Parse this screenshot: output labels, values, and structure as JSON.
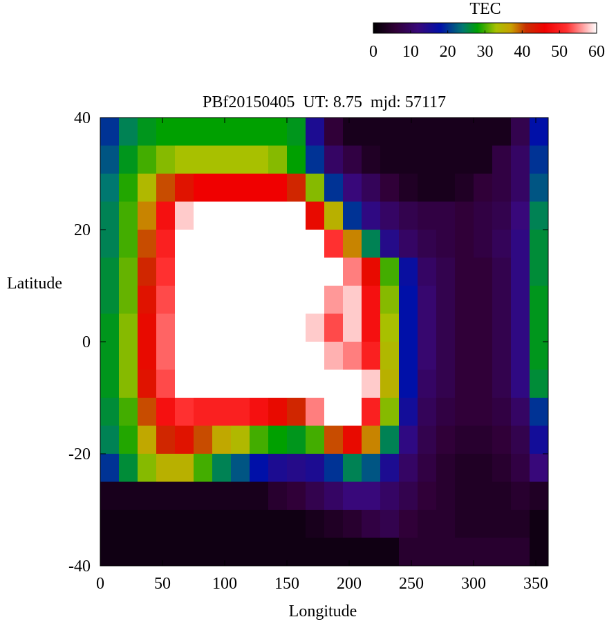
{
  "chart_data": {
    "type": "heatmap",
    "title": "PBf20150405  UT: 8.75  mjd: 57117",
    "x_label": "Longitude",
    "y_label": "Latitude",
    "colorbar_label": "TEC",
    "xlim": [
      0,
      360
    ],
    "xticks": [
      0,
      50,
      100,
      150,
      200,
      250,
      300,
      350
    ],
    "ylim": [
      -40,
      40
    ],
    "yticks": [
      -40,
      -20,
      0,
      20,
      40
    ],
    "clim": [
      0,
      60
    ],
    "cticks": [
      0,
      10,
      20,
      30,
      40,
      50,
      60
    ],
    "colormap": [
      [
        0,
        "#000000"
      ],
      [
        6,
        "#300038"
      ],
      [
        12,
        "#38087a"
      ],
      [
        18,
        "#0010a8"
      ],
      [
        24,
        "#007870"
      ],
      [
        28,
        "#00a000"
      ],
      [
        33,
        "#a8c000"
      ],
      [
        37,
        "#c8a000"
      ],
      [
        41,
        "#c83000"
      ],
      [
        46,
        "#f00000"
      ],
      [
        52,
        "#ff3030"
      ],
      [
        60,
        "#ffffff"
      ]
    ],
    "x": [
      7.5,
      22.5,
      37.5,
      52.5,
      67.5,
      82.5,
      97.5,
      112.5,
      127.5,
      142.5,
      157.5,
      172.5,
      187.5,
      202.5,
      217.5,
      232.5,
      247.5,
      262.5,
      277.5,
      292.5,
      307.5,
      322.5,
      337.5,
      352.5
    ],
    "y": [
      37.5,
      32.5,
      27.5,
      22.5,
      17.5,
      12.5,
      7.5,
      2.5,
      -2.5,
      -7.5,
      -12.5,
      -17.5,
      -22.5,
      -27.5,
      -32.5,
      -37.5
    ],
    "z": [
      [
        20,
        25,
        27,
        28,
        28,
        28,
        28,
        28,
        28,
        28,
        27,
        15,
        6,
        3,
        3,
        3,
        3,
        3,
        3,
        3,
        3,
        3,
        8,
        18
      ],
      [
        22,
        27,
        30,
        32,
        33,
        33,
        33,
        33,
        33,
        32,
        28,
        20,
        10,
        7,
        4,
        3,
        3,
        3,
        3,
        3,
        3,
        7,
        10,
        20
      ],
      [
        24,
        29,
        34,
        40,
        44,
        46,
        46,
        46,
        46,
        46,
        42,
        32,
        20,
        12,
        9,
        6,
        4,
        3,
        3,
        4,
        6,
        7,
        10,
        22
      ],
      [
        25,
        30,
        38,
        48,
        58,
        60,
        60,
        60,
        60,
        60,
        60,
        45,
        35,
        20,
        13,
        10,
        8,
        7,
        7,
        6,
        7,
        8,
        12,
        25
      ],
      [
        25,
        30,
        40,
        50,
        60,
        60,
        60,
        60,
        60,
        60,
        60,
        60,
        52,
        38,
        25,
        14,
        10,
        8,
        7,
        6,
        7,
        9,
        13,
        26
      ],
      [
        26,
        31,
        42,
        52,
        60,
        60,
        60,
        60,
        60,
        60,
        60,
        60,
        60,
        55,
        45,
        30,
        17,
        10,
        8,
        6,
        6,
        8,
        13,
        26
      ],
      [
        26,
        31,
        44,
        53,
        60,
        60,
        60,
        60,
        60,
        60,
        60,
        60,
        56,
        58,
        48,
        32,
        18,
        11,
        8,
        6,
        6,
        8,
        13,
        27
      ],
      [
        27,
        32,
        45,
        54,
        60,
        60,
        60,
        60,
        60,
        60,
        60,
        58,
        53,
        58,
        48,
        33,
        18,
        11,
        8,
        6,
        6,
        8,
        13,
        27
      ],
      [
        27,
        32,
        45,
        54,
        60,
        60,
        60,
        60,
        60,
        60,
        60,
        60,
        57,
        55,
        50,
        34,
        18,
        11,
        8,
        6,
        6,
        8,
        13,
        27
      ],
      [
        27,
        32,
        44,
        53,
        60,
        60,
        60,
        60,
        60,
        60,
        60,
        60,
        60,
        60,
        58,
        35,
        18,
        10,
        8,
        6,
        6,
        8,
        13,
        26
      ],
      [
        26,
        30,
        40,
        48,
        52,
        50,
        50,
        50,
        48,
        45,
        42,
        55,
        60,
        60,
        50,
        32,
        16,
        9,
        7,
        6,
        6,
        7,
        10,
        20
      ],
      [
        25,
        29,
        36,
        42,
        44,
        40,
        36,
        34,
        30,
        28,
        27,
        30,
        40,
        45,
        38,
        25,
        13,
        8,
        6,
        5,
        5,
        6,
        8,
        16
      ],
      [
        20,
        26,
        32,
        35,
        35,
        30,
        25,
        22,
        18,
        15,
        14,
        15,
        20,
        25,
        22,
        15,
        10,
        7,
        5,
        4,
        4,
        5,
        7,
        12
      ],
      [
        3,
        3,
        3,
        3,
        3,
        3,
        3,
        3,
        3,
        5,
        6,
        8,
        10,
        12,
        12,
        10,
        8,
        6,
        5,
        4,
        4,
        4,
        5,
        4
      ],
      [
        2,
        2,
        2,
        2,
        2,
        2,
        2,
        2,
        2,
        2,
        2,
        3,
        4,
        5,
        7,
        8,
        6,
        5,
        5,
        4,
        4,
        4,
        4,
        2
      ],
      [
        2,
        2,
        2,
        2,
        2,
        2,
        2,
        2,
        2,
        2,
        2,
        2,
        2,
        2,
        2,
        2,
        5,
        5,
        5,
        5,
        5,
        5,
        5,
        2
      ]
    ]
  }
}
